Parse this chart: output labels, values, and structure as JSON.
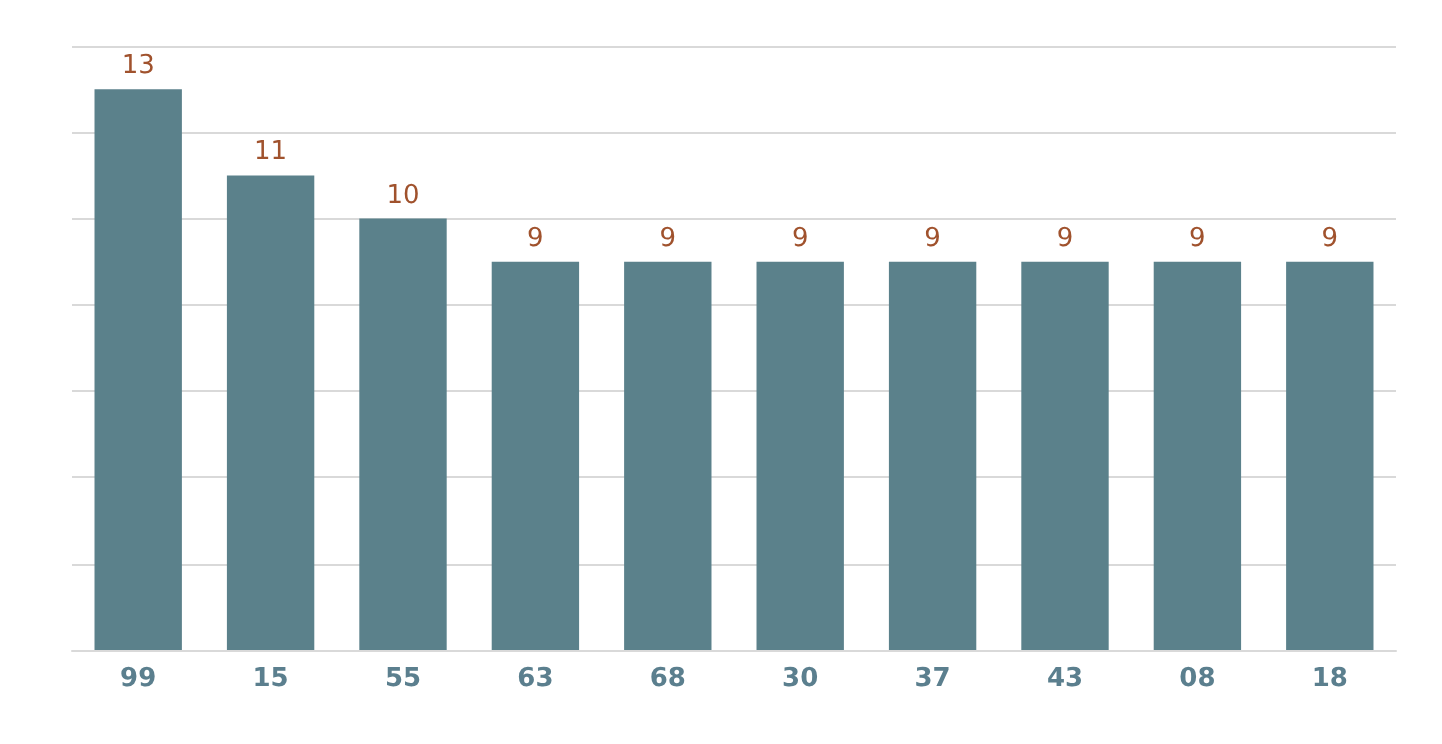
{
  "chart_data": {
    "type": "bar",
    "categories": [
      "99",
      "15",
      "55",
      "63",
      "68",
      "30",
      "37",
      "43",
      "08",
      "18"
    ],
    "values": [
      13,
      11,
      10,
      9,
      9,
      9,
      9,
      9,
      9,
      9
    ],
    "color": "#5b818b",
    "ylim": [
      0,
      14
    ],
    "yticks": [
      0,
      2,
      4,
      6,
      8,
      10,
      12,
      14
    ],
    "grid": "y",
    "tick_labels": "x",
    "data_labels": true
  }
}
